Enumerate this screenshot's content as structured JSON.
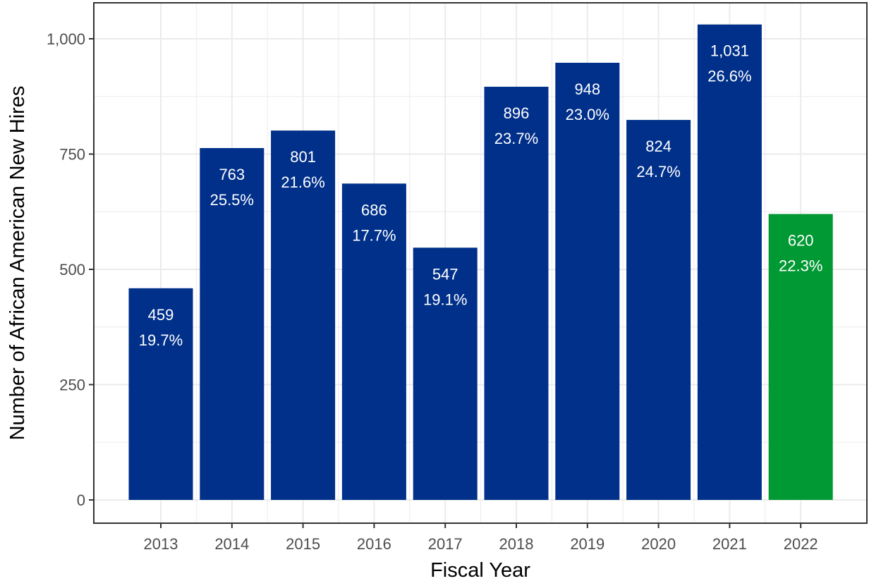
{
  "chart_data": {
    "type": "bar",
    "title": "",
    "xlabel": "Fiscal Year",
    "ylabel": "Number of African American New Hires",
    "categories": [
      "2013",
      "2014",
      "2015",
      "2016",
      "2017",
      "2018",
      "2019",
      "2020",
      "2021",
      "2022"
    ],
    "values": [
      459,
      763,
      801,
      686,
      547,
      896,
      948,
      824,
      1031,
      620
    ],
    "value_labels": [
      "459",
      "763",
      "801",
      "686",
      "547",
      "896",
      "948",
      "824",
      "1,031",
      "620"
    ],
    "percent_labels": [
      "19.7%",
      "25.5%",
      "21.6%",
      "17.7%",
      "19.1%",
      "23.7%",
      "23.0%",
      "24.7%",
      "26.6%",
      "22.3%"
    ],
    "ylim": [
      0,
      1080
    ],
    "yticks": [
      0,
      250,
      500,
      750,
      1000
    ],
    "ytick_labels": [
      "0",
      "250",
      "500",
      "750",
      "1,000"
    ],
    "grid": true,
    "legend": "none",
    "colors": {
      "default_bar": "#00308a",
      "highlight_bar": "#009933",
      "panel_border": "#333333",
      "grid": "#ebebeb"
    },
    "highlight_categories": [
      "2022"
    ]
  }
}
